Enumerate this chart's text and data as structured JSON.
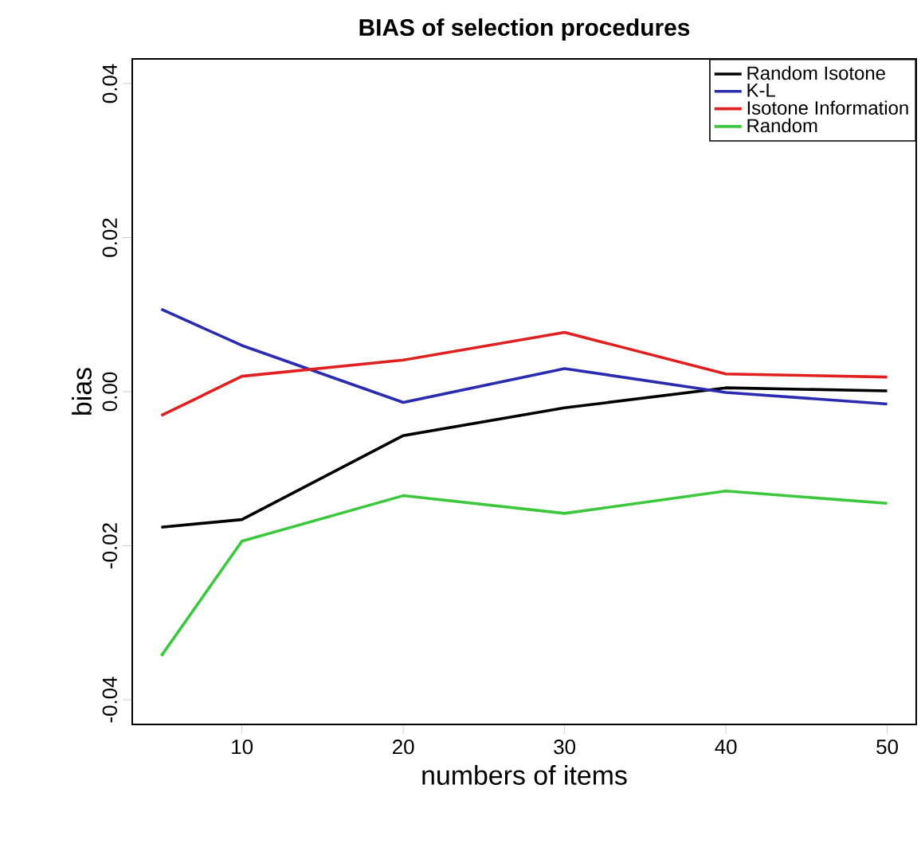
{
  "chart_data": {
    "type": "line",
    "title": "BIAS of selection procedures",
    "xlabel": "numbers of items",
    "ylabel": "bias",
    "x": [
      5,
      10,
      20,
      30,
      40,
      50
    ],
    "series": [
      {
        "name": "Random Isotone",
        "color": "#000000",
        "values": [
          -0.0176,
          -0.0166,
          -0.0057,
          -0.0021,
          0.0005,
          0.0001
        ]
      },
      {
        "name": "K-L",
        "color": "#2b2bb0",
        "values": [
          0.0107,
          0.006,
          -0.0014,
          0.003,
          -0.0001,
          -0.0016
        ]
      },
      {
        "name": "Isotone Information",
        "color": "#e02020",
        "values": [
          -0.0031,
          0.002,
          0.0041,
          0.0077,
          0.0023,
          0.0019
        ]
      },
      {
        "name": "Random",
        "color": "#3cc83c",
        "values": [
          -0.0343,
          -0.0194,
          -0.0135,
          -0.0158,
          -0.0129,
          -0.0145
        ]
      }
    ],
    "xlim": [
      3.2,
      51.8
    ],
    "ylim": [
      -0.0432,
      0.0432
    ],
    "xticks": [
      10,
      20,
      30,
      40,
      50
    ],
    "yticks": [
      {
        "value": -0.04,
        "label": "-0.04"
      },
      {
        "value": -0.02,
        "label": "-0.02"
      },
      {
        "value": 0,
        "label": "0.00"
      },
      {
        "value": 0.02,
        "label": "0.02"
      },
      {
        "value": 0.04,
        "label": "0.04"
      }
    ],
    "grid": false,
    "legend": "top right",
    "marker": "none",
    "line_style": "solid"
  }
}
